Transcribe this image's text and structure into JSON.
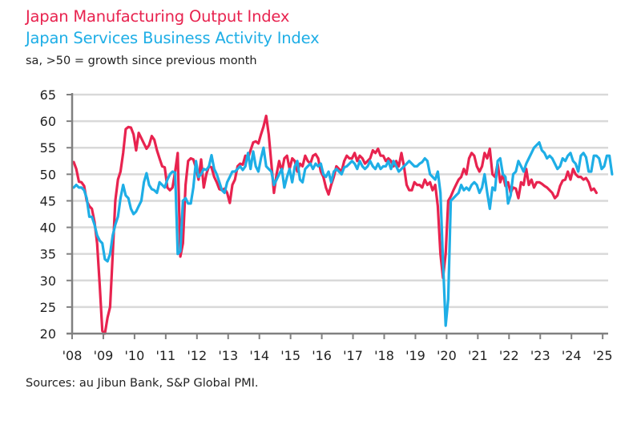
{
  "header": {
    "title_1": "Japan Manufacturing Output Index",
    "title_2": "Japan Services Business Activity Index",
    "subtitle": "sa, >50 = growth since previous month"
  },
  "footer": {
    "source": "Sources: au Jibun Bank, S&P Global PMI."
  },
  "colors": {
    "manufacturing": "#e8234f",
    "services": "#1eaee6",
    "grid": "#d9d9d9",
    "axis": "#808080"
  },
  "chart_data": {
    "type": "line",
    "title": "Japan Manufacturing Output Index / Japan Services Business Activity Index",
    "subtitle": "sa, >50 = growth since previous month",
    "xlabel": "",
    "ylabel": "",
    "ylim": [
      20,
      65
    ],
    "yticks": [
      "65",
      "60",
      "55",
      "50",
      "45",
      "40",
      "35",
      "30",
      "25",
      "20"
    ],
    "yticks_values": [
      65,
      60,
      55,
      50,
      45,
      40,
      35,
      30,
      25,
      20
    ],
    "xticks": [
      "'08",
      "'09",
      "'10",
      "'11",
      "'12",
      "'13",
      "'14",
      "'15",
      "'16",
      "'17",
      "'18",
      "'19",
      "'20",
      "'21",
      "'22",
      "'23",
      "'24",
      "'25"
    ],
    "x_start": "2008-01",
    "x_frequency": "monthly",
    "grid": true,
    "legend": "title-colored-top-left",
    "series": [
      {
        "name": "Japan Manufacturing Output Index",
        "color": "#e8234f",
        "values": [
          52.3,
          51.0,
          48.6,
          48.5,
          47.8,
          45.0,
          44.0,
          43.5,
          41.0,
          37.0,
          29.0,
          20.5,
          19.5,
          23.0,
          25.0,
          35.0,
          45.0,
          49.0,
          50.5,
          54.0,
          58.5,
          58.9,
          58.8,
          57.5,
          54.5,
          57.8,
          56.8,
          55.8,
          54.8,
          55.5,
          57.2,
          56.5,
          54.5,
          53.0,
          51.5,
          51.3,
          47.5,
          47.0,
          47.5,
          50.5,
          54.0,
          34.5,
          37.0,
          48.0,
          52.5,
          53.0,
          52.8,
          51.2,
          49.0,
          52.8,
          47.5,
          50.0,
          51.5,
          51.3,
          49.5,
          48.5,
          47.2,
          47.0,
          47.3,
          46.5,
          44.6,
          48.0,
          49.0,
          51.5,
          52.0,
          51.8,
          53.5,
          53.0,
          54.5,
          56.0,
          56.2,
          55.8,
          57.5,
          59.0,
          61.0,
          57.5,
          52.0,
          46.5,
          50.0,
          52.5,
          50.5,
          53.0,
          53.5,
          51.0,
          53.0,
          52.5,
          50.5,
          52.0,
          51.5,
          53.5,
          52.5,
          52.0,
          53.5,
          53.8,
          53.0,
          50.5,
          49.5,
          47.5,
          46.2,
          48.0,
          49.5,
          51.5,
          51.0,
          50.5,
          52.5,
          53.5,
          53.0,
          53.0,
          54.0,
          52.5,
          53.5,
          53.0,
          52.0,
          52.5,
          53.0,
          54.5,
          54.0,
          54.8,
          53.5,
          53.5,
          52.5,
          53.0,
          52.5,
          51.5,
          52.5,
          51.5,
          54.0,
          51.5,
          48.0,
          47.0,
          47.0,
          48.5,
          48.0,
          48.0,
          47.5,
          49.0,
          48.0,
          48.5,
          47.0,
          48.0,
          44.0,
          35.0,
          30.5,
          35.0,
          45.0,
          45.8,
          47.0,
          48.0,
          49.0,
          49.5,
          51.0,
          50.0,
          53.0,
          54.0,
          53.5,
          51.5,
          50.5,
          51.5,
          54.0,
          53.0,
          54.8,
          50.0,
          49.5,
          52.0,
          48.5,
          50.0,
          47.8,
          48.5,
          46.5,
          47.5,
          47.3,
          45.5,
          48.5,
          48.0,
          51.0,
          48.0,
          49.0,
          47.5,
          48.5,
          48.5,
          48.2,
          47.8,
          47.5,
          47.0,
          46.5,
          45.5,
          46.0,
          47.8,
          48.8,
          49.0,
          50.5,
          49.0,
          51.0,
          50.0,
          49.5,
          49.5,
          49.0,
          49.3,
          48.5,
          47.0,
          47.3,
          46.5
        ],
        "last_value": 46.5
      },
      {
        "name": "Japan Services Business Activity Index",
        "color": "#1eaee6",
        "values": [
          47.5,
          48.0,
          47.5,
          47.5,
          47.0,
          45.5,
          42.0,
          42.0,
          40.5,
          38.5,
          37.5,
          37.0,
          34.0,
          33.6,
          35.0,
          38.5,
          40.5,
          42.0,
          45.5,
          48.0,
          46.0,
          45.5,
          43.5,
          42.5,
          43.0,
          44.0,
          45.0,
          48.5,
          50.2,
          48.0,
          47.2,
          47.0,
          46.5,
          48.5,
          48.0,
          47.5,
          49.0,
          50.0,
          50.5,
          50.3,
          35.0,
          35.5,
          45.0,
          45.5,
          44.5,
          44.5,
          47.5,
          52.5,
          49.5,
          50.0,
          51.0,
          50.8,
          51.5,
          53.6,
          51.0,
          50.0,
          48.5,
          47.0,
          46.5,
          48.5,
          49.5,
          50.5,
          50.5,
          51.0,
          51.5,
          50.8,
          51.5,
          54.0,
          51.0,
          54.3,
          51.5,
          50.5,
          53.0,
          55.0,
          51.5,
          51.0,
          50.5,
          48.0,
          49.0,
          50.0,
          51.0,
          47.5,
          49.5,
          51.0,
          48.5,
          51.5,
          52.5,
          49.0,
          48.5,
          51.0,
          51.5,
          52.0,
          51.0,
          52.0,
          51.5,
          52.0,
          50.0,
          49.5,
          50.5,
          48.5,
          50.5,
          51.0,
          50.5,
          50.0,
          51.3,
          51.5,
          52.0,
          52.5,
          52.0,
          51.0,
          52.5,
          51.5,
          51.0,
          51.5,
          52.5,
          51.5,
          51.0,
          52.0,
          51.0,
          51.5,
          51.5,
          52.5,
          51.0,
          52.5,
          51.5,
          50.5,
          51.0,
          51.5,
          52.0,
          52.5,
          52.0,
          51.5,
          51.5,
          52.0,
          52.3,
          53.0,
          52.5,
          50.0,
          49.5,
          49.0,
          50.5,
          46.5,
          33.5,
          21.5,
          26.5,
          45.0,
          45.5,
          46.0,
          46.5,
          48.0,
          47.0,
          47.5,
          47.0,
          48.0,
          48.5,
          48.0,
          46.5,
          47.5,
          50.0,
          46.5,
          43.5,
          47.5,
          47.0,
          52.5,
          53.0,
          50.0,
          49.5,
          44.5,
          46.0,
          50.0,
          50.5,
          52.5,
          51.5,
          50.5,
          52.0,
          53.0,
          54.0,
          55.0,
          55.5,
          56.0,
          54.5,
          54.0,
          53.0,
          53.5,
          53.0,
          52.0,
          51.0,
          51.5,
          53.0,
          52.5,
          53.5,
          54.0,
          52.5,
          52.0,
          50.5,
          53.5,
          54.0,
          53.2,
          50.5,
          50.5,
          53.5,
          53.5,
          53.0,
          51.0,
          51.5,
          53.5,
          53.5,
          50.0
        ],
        "last_value": 50.0
      }
    ]
  }
}
